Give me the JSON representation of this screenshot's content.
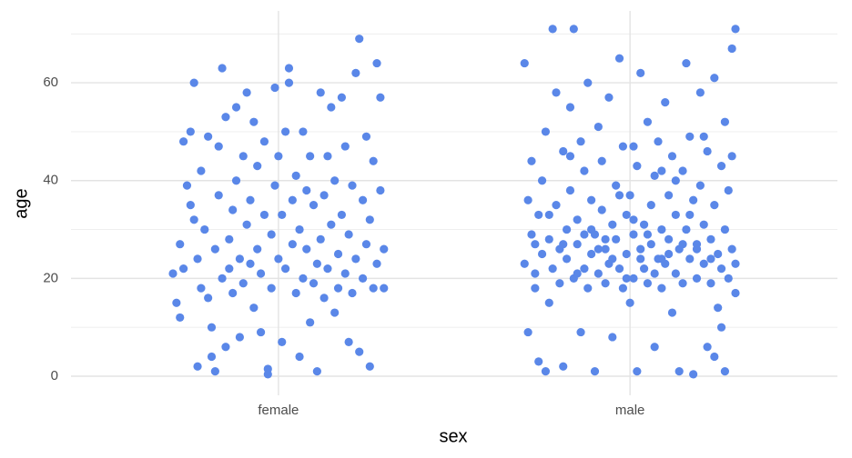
{
  "chart_data": {
    "type": "scatter",
    "xlabel": "sex",
    "ylabel": "age",
    "color": "#5a87e8",
    "xlim": [
      0.41,
      2.59
    ],
    "xticks": [
      {
        "value": 1,
        "label": "female"
      },
      {
        "value": 2,
        "label": "male"
      }
    ],
    "ylim": [
      -3.9,
      74.7
    ],
    "yticks": [
      0,
      20,
      40,
      60
    ],
    "minor_yticks": [
      10,
      30,
      50,
      70
    ],
    "grid": true,
    "x": [
      0.7,
      0.71,
      0.72,
      0.72,
      0.73,
      0.73,
      0.74,
      0.75,
      0.75,
      0.76,
      0.76,
      0.77,
      0.77,
      0.78,
      0.78,
      0.79,
      0.8,
      0.8,
      0.81,
      0.81,
      0.82,
      0.82,
      0.83,
      0.83,
      0.84,
      0.84,
      0.85,
      0.85,
      0.86,
      0.86,
      0.87,
      0.87,
      0.88,
      0.88,
      0.89,
      0.89,
      0.9,
      0.9,
      0.91,
      0.91,
      0.92,
      0.92,
      0.93,
      0.93,
      0.94,
      0.94,
      0.95,
      0.95,
      0.96,
      0.96,
      0.97,
      0.97,
      0.98,
      0.98,
      0.99,
      0.99,
      1.0,
      1.0,
      1.01,
      1.01,
      1.02,
      1.02,
      1.03,
      1.03,
      1.04,
      1.04,
      1.05,
      1.05,
      1.06,
      1.06,
      1.07,
      1.07,
      1.08,
      1.08,
      1.09,
      1.09,
      1.1,
      1.1,
      1.11,
      1.11,
      1.12,
      1.12,
      1.13,
      1.13,
      1.14,
      1.14,
      1.15,
      1.15,
      1.16,
      1.16,
      1.17,
      1.17,
      1.18,
      1.18,
      1.19,
      1.19,
      1.2,
      1.2,
      1.21,
      1.21,
      1.22,
      1.22,
      1.23,
      1.23,
      1.24,
      1.24,
      1.25,
      1.25,
      1.26,
      1.26,
      1.27,
      1.27,
      1.28,
      1.28,
      1.29,
      1.29,
      1.3,
      1.3,
      1.7,
      1.7,
      1.71,
      1.71,
      1.72,
      1.72,
      1.73,
      1.73,
      1.74,
      1.74,
      1.75,
      1.75,
      1.76,
      1.76,
      1.77,
      1.77,
      1.78,
      1.78,
      1.79,
      1.79,
      1.8,
      1.8,
      1.81,
      1.81,
      1.82,
      1.82,
      1.83,
      1.83,
      1.84,
      1.84,
      1.85,
      1.85,
      1.86,
      1.86,
      1.87,
      1.87,
      1.88,
      1.88,
      1.89,
      1.89,
      1.9,
      1.9,
      1.91,
      1.91,
      1.92,
      1.92,
      1.93,
      1.93,
      1.94,
      1.94,
      1.95,
      1.95,
      1.96,
      1.96,
      1.97,
      1.97,
      1.98,
      1.98,
      1.99,
      1.99,
      2.0,
      2.0,
      2.01,
      2.01,
      2.02,
      2.02,
      2.03,
      2.03,
      2.04,
      2.04,
      2.05,
      2.05,
      2.06,
      2.06,
      2.07,
      2.07,
      2.08,
      2.08,
      2.09,
      2.09,
      2.1,
      2.1,
      2.11,
      2.11,
      2.12,
      2.12,
      2.13,
      2.13,
      2.14,
      2.14,
      2.15,
      2.15,
      2.16,
      2.16,
      2.17,
      2.17,
      2.18,
      2.18,
      2.19,
      2.19,
      2.2,
      2.2,
      2.21,
      2.21,
      2.22,
      2.22,
      2.23,
      2.23,
      2.24,
      2.24,
      2.25,
      2.25,
      2.26,
      2.26,
      2.27,
      2.27,
      2.28,
      2.28,
      2.29,
      2.29,
      2.3,
      2.3,
      2.3,
      2.29,
      2.27,
      2.26,
      2.24,
      2.21,
      2.17,
      2.13,
      2.09,
      2.05,
      2.01,
      1.97,
      1.93,
      1.89,
      1.85,
      1.81,
      1.77,
      1.73,
      2.03,
      2.07,
      2.11,
      1.95,
      1.99,
      2.15,
      2.19,
      1.91,
      1.87,
      2.23,
      2.09,
      2.01,
      1.83
    ],
    "values": [
      21,
      15,
      27,
      12,
      22,
      48,
      39,
      35,
      50,
      32,
      60,
      2,
      24,
      42,
      18,
      30,
      49,
      16,
      10,
      4,
      1,
      26,
      47,
      37,
      63,
      20,
      6,
      53,
      22,
      28,
      34,
      17,
      40,
      55,
      24,
      8,
      45,
      19,
      58,
      31,
      23,
      36,
      52,
      14,
      26,
      43,
      9,
      21,
      48,
      33,
      0.4,
      1.5,
      18,
      29,
      39,
      59,
      24,
      45,
      7,
      33,
      22,
      50,
      63,
      60,
      27,
      36,
      17,
      41,
      4,
      30,
      50,
      20,
      38,
      26,
      11,
      45,
      19,
      35,
      23,
      1,
      58,
      28,
      37,
      16,
      45,
      22,
      31,
      55,
      13,
      40,
      25,
      18,
      57,
      33,
      21,
      47,
      7,
      29,
      39,
      17,
      62,
      24,
      69,
      5,
      36,
      20,
      49,
      27,
      2,
      32,
      18,
      44,
      64,
      23,
      38,
      57,
      18,
      26,
      64,
      23,
      36,
      9,
      44,
      29,
      21,
      18,
      33,
      3,
      25,
      40,
      50,
      1,
      28,
      15,
      71,
      22,
      35,
      58,
      19,
      26,
      46,
      2,
      30,
      24,
      55,
      38,
      71,
      20,
      32,
      27,
      48,
      9,
      22,
      42,
      18,
      60,
      36,
      25,
      29,
      1,
      51,
      21,
      34,
      44,
      26,
      19,
      57,
      23,
      31,
      8,
      39,
      28,
      65,
      22,
      47,
      18,
      33,
      25,
      15,
      37,
      20,
      29,
      43,
      1,
      26,
      62,
      31,
      22,
      52,
      19,
      35,
      27,
      6,
      41,
      24,
      48,
      30,
      18,
      56,
      23,
      37,
      28,
      13,
      45,
      21,
      33,
      1,
      26,
      42,
      19,
      64,
      30,
      24,
      49,
      0.4,
      36,
      27,
      20,
      58,
      39,
      23,
      31,
      46,
      6,
      28,
      19,
      61,
      35,
      25,
      14,
      43,
      22,
      52,
      30,
      20,
      38,
      67,
      26,
      71,
      23,
      17,
      45,
      1,
      10,
      4,
      49,
      33,
      40,
      24,
      29,
      32,
      37,
      28,
      30,
      21,
      27,
      33,
      27,
      24,
      21,
      25,
      24,
      20,
      27,
      26,
      26,
      29,
      24,
      42,
      47,
      45
    ]
  }
}
